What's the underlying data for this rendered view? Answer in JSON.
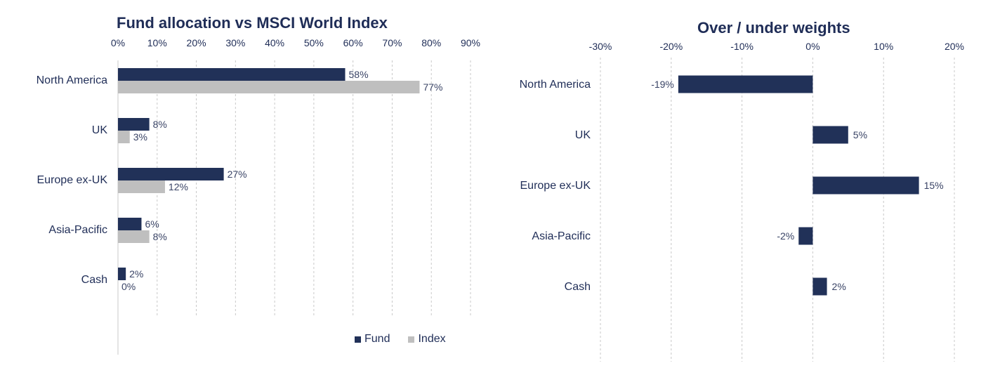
{
  "chart_data": [
    {
      "type": "bar",
      "orientation": "horizontal",
      "title": "Fund allocation vs MSCI World Index",
      "categories": [
        "North America",
        "UK",
        "Europe ex-UK",
        "Asia-Pacific",
        "Cash"
      ],
      "series": [
        {
          "name": "Fund",
          "values": [
            58,
            8,
            27,
            6,
            2
          ],
          "labels": [
            "58%",
            "8%",
            "27%",
            "6%",
            "2%"
          ],
          "color": "#213158"
        },
        {
          "name": "Index",
          "values": [
            77,
            3,
            12,
            8,
            0
          ],
          "labels": [
            "77%",
            "3%",
            "12%",
            "8%",
            "0%"
          ],
          "color": "#bfbfbf"
        }
      ],
      "xlim": [
        0,
        90
      ],
      "ticks": [
        "0%",
        "10%",
        "20%",
        "30%",
        "40%",
        "50%",
        "60%",
        "70%",
        "80%",
        "90%"
      ],
      "grid": "vertical dashed",
      "legend_position": "bottom-right"
    },
    {
      "type": "bar",
      "orientation": "horizontal",
      "title": "Over / under weights",
      "categories": [
        "North America",
        "UK",
        "Europe ex-UK",
        "Asia-Pacific",
        "Cash"
      ],
      "series": [
        {
          "values": [
            -19,
            5,
            15,
            -2,
            2
          ],
          "labels": [
            "-19%",
            "5%",
            "15%",
            "-2%",
            "2%"
          ],
          "color": "#213158"
        }
      ],
      "xlim": [
        -30,
        20
      ],
      "ticks": [
        "-30%",
        "-20%",
        "-10%",
        "0%",
        "10%",
        "20%"
      ],
      "grid": "vertical dashed"
    }
  ]
}
